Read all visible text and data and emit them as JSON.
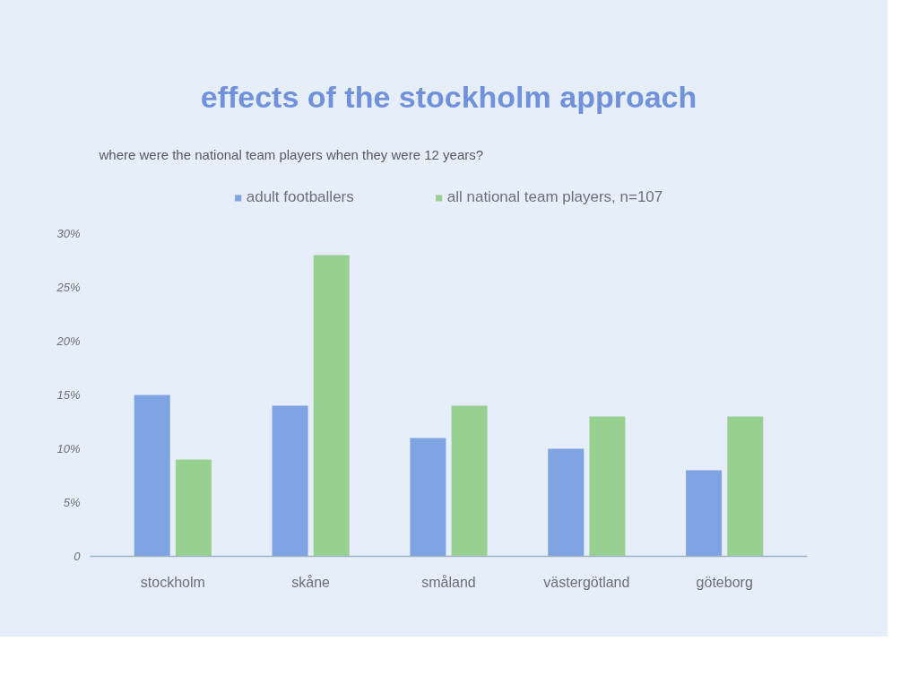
{
  "chart_data": {
    "type": "bar",
    "title": "effects of the stockholm approach",
    "subtitle": "where were the national team players when they were 12 years?",
    "categories": [
      "stockholm",
      "skåne",
      "småland",
      "västergötland",
      "göteborg"
    ],
    "series": [
      {
        "name": "adult footballers",
        "color": "#7fa3e3",
        "values": [
          15,
          14,
          11,
          10,
          8
        ]
      },
      {
        "name": "all national team players, n=107",
        "color": "#97d091",
        "values": [
          9,
          28,
          14,
          13,
          13
        ]
      }
    ],
    "ylim": [
      0,
      30
    ],
    "yticks": [
      0,
      {
        "value": 5,
        "label": "5%"
      },
      {
        "value": 10,
        "label": "10%"
      },
      {
        "value": 15,
        "label": "15%"
      },
      {
        "value": 20,
        "label": "20%"
      },
      {
        "value": 25,
        "label": "25%"
      },
      {
        "value": 30,
        "label": "30%"
      }
    ],
    "grid": false,
    "legend": "top"
  }
}
